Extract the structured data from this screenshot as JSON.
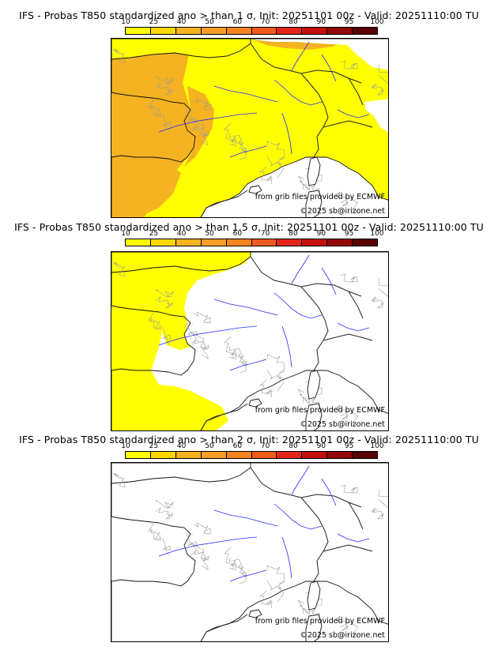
{
  "panels": [
    {
      "title": "IFS - Probas T850  standardized ano > than 1 σ, Init: 20251101 00z - Valid: 20251110:00 TU",
      "credit_1": "from grib files provided by ECMWF",
      "credit_2": "©2025 sb@irizone.net",
      "coverage": "widespread"
    },
    {
      "title": "IFS - Probas T850  standardized ano > than 1.5 σ, Init: 20251101 00z - Valid: 20251110:00 TU",
      "credit_1": "from grib files provided by ECMWF",
      "credit_2": "©2025 sb@irizone.net",
      "coverage": "west-only"
    },
    {
      "title": "IFS - Probas T850  standardized ano > than 2 σ, Init: 20251101 00z - Valid: 20251110:00 TU",
      "credit_1": "from grib files provided by ECMWF",
      "credit_2": "©2025 sb@irizone.net",
      "coverage": "none"
    }
  ],
  "colorbar": {
    "ticks": [
      "10",
      "25",
      "40",
      "50",
      "60",
      "70",
      "80",
      "90",
      "95",
      "100"
    ],
    "colors": [
      "#ffff00",
      "#ffd700",
      "#f5b321",
      "#f59d27",
      "#f38420",
      "#f05a1c",
      "#e32418",
      "#c40f0f",
      "#930808",
      "#5a0202"
    ]
  },
  "map_colors": {
    "sea": "#ffffff",
    "border": "#222222",
    "admin": "#9a9a9a",
    "river": "#2a2aff",
    "prob_low": "#ffff00",
    "prob_mid": "#f5b321"
  }
}
